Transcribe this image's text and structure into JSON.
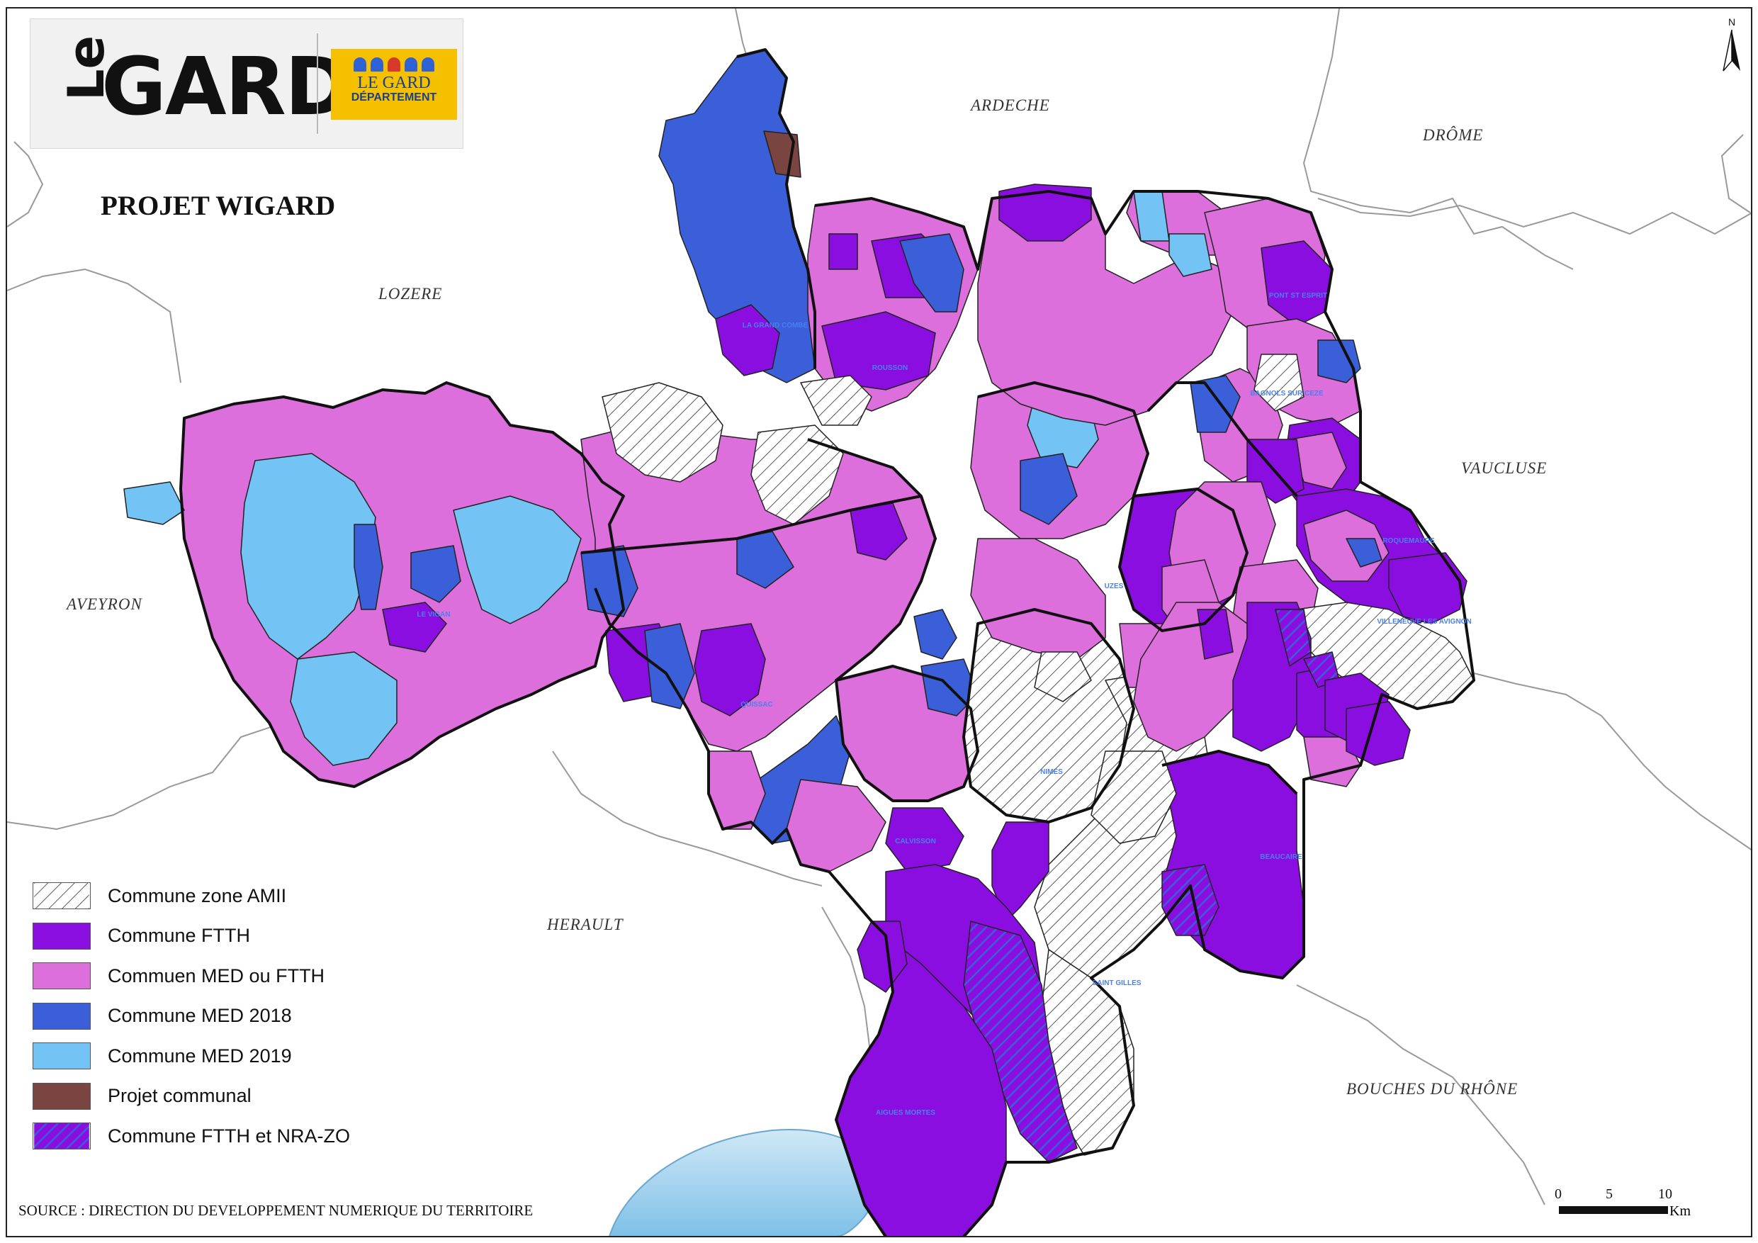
{
  "logo": {
    "le": "Le",
    "gard": "GARD",
    "dept_line1": "LE GARD",
    "dept_line2": "DÉPARTEMENT"
  },
  "title": "PROJET WIGARD",
  "regions": {
    "ardeche": "ARDECHE",
    "drome": "DRÔME",
    "lozere": "LOZERE",
    "vaucluse": "VAUCLUSE",
    "aveyron": "AVEYRON",
    "herault": "HERAULT",
    "bouches": "BOUCHES DU RHÔNE"
  },
  "legend": [
    {
      "label": "Commune zone AMII",
      "pattern": "hatch-white"
    },
    {
      "label": "Commune FTTH",
      "color": "#8b0ee0"
    },
    {
      "label": "Commuen MED ou FTTH",
      "color": "#dd6fdc"
    },
    {
      "label": "Commune MED 2018",
      "color": "#3a5fd8"
    },
    {
      "label": "Commune MED 2019",
      "color": "#74c3f5"
    },
    {
      "label": "Projet communal",
      "color": "#7a4540"
    },
    {
      "label": "Commune FTTH et NRA-ZO",
      "pattern": "hatch-purple-blue"
    }
  ],
  "source": "SOURCE : DIRECTION DU DEVELOPPEMENT NUMERIQUE DU TERRITOIRE",
  "scale": {
    "t0": "0",
    "t5": "5",
    "t10": "10",
    "unit": "Km"
  },
  "north": "N",
  "colors": {
    "amii": "#ffffff",
    "ftth": "#8b0ee0",
    "med_ftth": "#dd6fdc",
    "med2018": "#3a5fd8",
    "med2019": "#74c3f5",
    "projet": "#7a4540",
    "sea": "#a6d4ee"
  },
  "towns": {
    "nimes": "NIMES",
    "uzes": "UZES",
    "beaucaire": "BEAUCAIRE",
    "saint_gilles": "SAINT GILLES",
    "aigues_mortes": "AIGUES MORTES",
    "le_vigan": "LE VIGAN",
    "quissac": "QUISSAC",
    "calvisson": "CALVISSON",
    "rousson": "ROUSSON",
    "roquemaure": "ROQUEMAURE",
    "bagnols": "BAGNOLS SUR CEZE",
    "la_grand_combe": "LA GRAND COMBE",
    "villeneuve": "VILLENEUVE LES AVIGNON",
    "pont_st_esprit": "PONT ST ESPRIT"
  }
}
